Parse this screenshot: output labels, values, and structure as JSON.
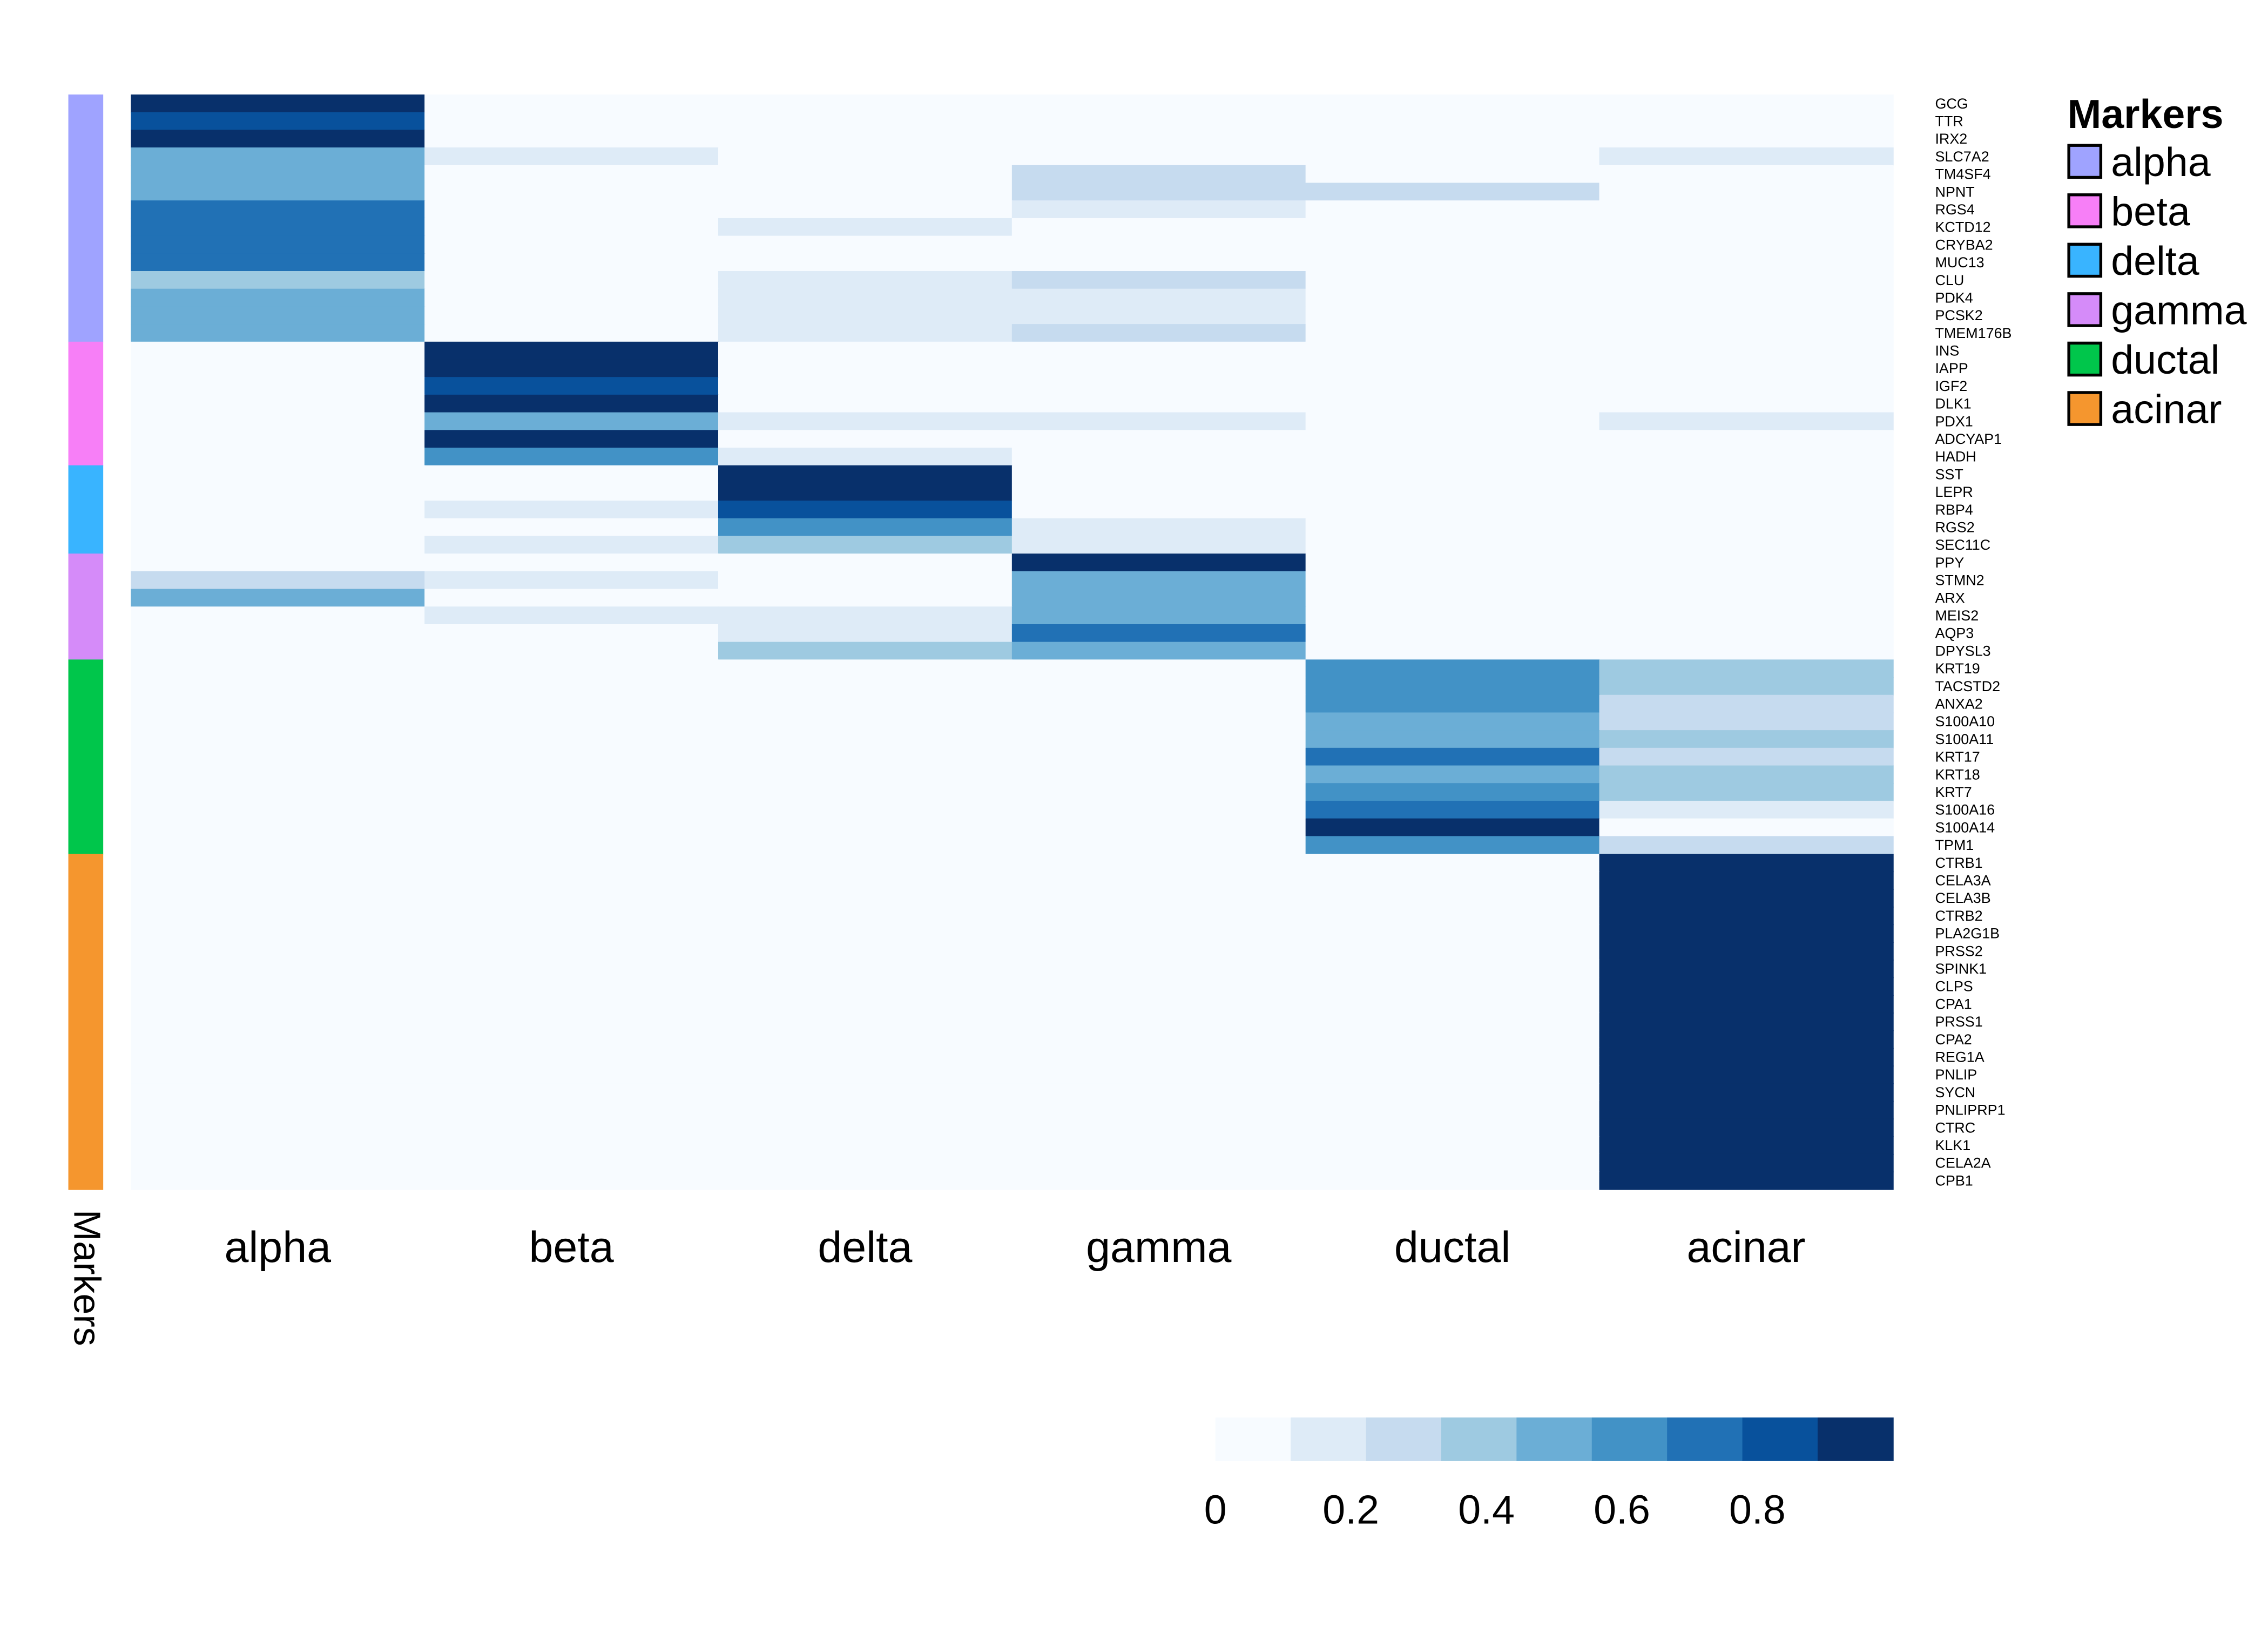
{
  "chart_data": {
    "type": "heatmap",
    "title": "",
    "columns": [
      "alpha",
      "beta",
      "delta",
      "gamma",
      "ductal",
      "acinar"
    ],
    "row_annotation_title": "Markers",
    "row_groups": [
      {
        "name": "alpha",
        "color": "#9fa3ff",
        "genes": [
          "GCG",
          "TTR",
          "IRX2",
          "SLC7A2",
          "TM4SF4",
          "NPNT",
          "RGS4",
          "KCTD12",
          "CRYBA2",
          "MUC13",
          "CLU",
          "PDK4",
          "PCSK2",
          "TMEM176B"
        ]
      },
      {
        "name": "beta",
        "color": "#f77ff7",
        "genes": [
          "INS",
          "IAPP",
          "IGF2",
          "DLK1",
          "PDX1",
          "ADCYAP1",
          "HADH"
        ]
      },
      {
        "name": "delta",
        "color": "#39b4ff",
        "genes": [
          "SST",
          "LEPR",
          "RBP4",
          "RGS2",
          "SEC11C"
        ]
      },
      {
        "name": "gamma",
        "color": "#d58bf9",
        "genes": [
          "PPY",
          "STMN2",
          "ARX",
          "MEIS2",
          "AQP3",
          "DPYSL3"
        ]
      },
      {
        "name": "ductal",
        "color": "#00c64b",
        "genes": [
          "KRT19",
          "TACSTD2",
          "ANXA2",
          "S100A10",
          "S100A11",
          "KRT17",
          "KRT18",
          "KRT7",
          "S100A16",
          "S100A14",
          "TPM1"
        ]
      },
      {
        "name": "acinar",
        "color": "#f5962e",
        "genes": [
          "CTRB1",
          "CELA3A",
          "CELA3B",
          "CTRB2",
          "PLA2G1B",
          "PRSS2",
          "SPINK1",
          "CLPS",
          "CPA1",
          "PRSS1",
          "CPA2",
          "REG1A",
          "PNLIP",
          "SYCN",
          "PNLIPRP1",
          "CTRC",
          "KLK1",
          "CELA2A",
          "CPB1"
        ]
      }
    ],
    "values": [
      [
        0.95,
        0.05,
        0.05,
        0.05,
        0.05,
        0.05
      ],
      [
        0.83,
        0.05,
        0.05,
        0.05,
        0.05,
        0.05
      ],
      [
        0.95,
        0.05,
        0.05,
        0.05,
        0.05,
        0.05
      ],
      [
        0.5,
        0.16,
        0.05,
        0.05,
        0.05,
        0.16
      ],
      [
        0.5,
        0.05,
        0.05,
        0.27,
        0.05,
        0.05
      ],
      [
        0.5,
        0.05,
        0.05,
        0.27,
        0.27,
        0.05
      ],
      [
        0.72,
        0.05,
        0.05,
        0.16,
        0.05,
        0.05
      ],
      [
        0.72,
        0.05,
        0.16,
        0.05,
        0.05,
        0.05
      ],
      [
        0.72,
        0.05,
        0.05,
        0.05,
        0.05,
        0.05
      ],
      [
        0.72,
        0.05,
        0.05,
        0.05,
        0.05,
        0.05
      ],
      [
        0.38,
        0.05,
        0.16,
        0.27,
        0.05,
        0.05
      ],
      [
        0.5,
        0.05,
        0.16,
        0.16,
        0.05,
        0.05
      ],
      [
        0.5,
        0.05,
        0.16,
        0.16,
        0.05,
        0.05
      ],
      [
        0.5,
        0.05,
        0.16,
        0.27,
        0.05,
        0.05
      ],
      [
        0.05,
        0.95,
        0.05,
        0.05,
        0.05,
        0.05
      ],
      [
        0.05,
        0.95,
        0.05,
        0.05,
        0.05,
        0.05
      ],
      [
        0.05,
        0.83,
        0.05,
        0.05,
        0.05,
        0.05
      ],
      [
        0.05,
        0.95,
        0.05,
        0.05,
        0.05,
        0.05
      ],
      [
        0.05,
        0.5,
        0.16,
        0.16,
        0.05,
        0.16
      ],
      [
        0.05,
        0.95,
        0.05,
        0.05,
        0.05,
        0.05
      ],
      [
        0.05,
        0.61,
        0.16,
        0.05,
        0.05,
        0.05
      ],
      [
        0.05,
        0.05,
        0.95,
        0.05,
        0.05,
        0.05
      ],
      [
        0.05,
        0.05,
        0.95,
        0.05,
        0.05,
        0.05
      ],
      [
        0.05,
        0.16,
        0.83,
        0.05,
        0.05,
        0.05
      ],
      [
        0.05,
        0.05,
        0.61,
        0.16,
        0.05,
        0.05
      ],
      [
        0.05,
        0.16,
        0.38,
        0.16,
        0.05,
        0.05
      ],
      [
        0.05,
        0.05,
        0.05,
        0.95,
        0.05,
        0.05
      ],
      [
        0.27,
        0.16,
        0.05,
        0.5,
        0.05,
        0.05
      ],
      [
        0.5,
        0.05,
        0.05,
        0.5,
        0.05,
        0.05
      ],
      [
        0.05,
        0.16,
        0.16,
        0.5,
        0.05,
        0.05
      ],
      [
        0.05,
        0.05,
        0.16,
        0.72,
        0.05,
        0.05
      ],
      [
        0.05,
        0.05,
        0.38,
        0.5,
        0.05,
        0.05
      ],
      [
        0.05,
        0.05,
        0.05,
        0.05,
        0.61,
        0.38
      ],
      [
        0.05,
        0.05,
        0.05,
        0.05,
        0.61,
        0.38
      ],
      [
        0.05,
        0.05,
        0.05,
        0.05,
        0.61,
        0.27
      ],
      [
        0.05,
        0.05,
        0.05,
        0.05,
        0.5,
        0.27
      ],
      [
        0.05,
        0.05,
        0.05,
        0.05,
        0.5,
        0.38
      ],
      [
        0.05,
        0.05,
        0.05,
        0.05,
        0.72,
        0.27
      ],
      [
        0.05,
        0.05,
        0.05,
        0.05,
        0.5,
        0.38
      ],
      [
        0.05,
        0.05,
        0.05,
        0.05,
        0.61,
        0.38
      ],
      [
        0.05,
        0.05,
        0.05,
        0.05,
        0.72,
        0.16
      ],
      [
        0.05,
        0.05,
        0.05,
        0.05,
        0.95,
        0.05
      ],
      [
        0.05,
        0.05,
        0.05,
        0.05,
        0.61,
        0.27
      ],
      [
        0.05,
        0.05,
        0.05,
        0.05,
        0.05,
        0.95
      ],
      [
        0.05,
        0.05,
        0.05,
        0.05,
        0.05,
        0.95
      ],
      [
        0.05,
        0.05,
        0.05,
        0.05,
        0.05,
        0.95
      ],
      [
        0.05,
        0.05,
        0.05,
        0.05,
        0.05,
        0.95
      ],
      [
        0.05,
        0.05,
        0.05,
        0.05,
        0.05,
        0.95
      ],
      [
        0.05,
        0.05,
        0.05,
        0.05,
        0.05,
        0.95
      ],
      [
        0.05,
        0.05,
        0.05,
        0.05,
        0.05,
        0.95
      ],
      [
        0.05,
        0.05,
        0.05,
        0.05,
        0.05,
        0.95
      ],
      [
        0.05,
        0.05,
        0.05,
        0.05,
        0.05,
        0.95
      ],
      [
        0.05,
        0.05,
        0.05,
        0.05,
        0.05,
        0.95
      ],
      [
        0.05,
        0.05,
        0.05,
        0.05,
        0.05,
        0.95
      ],
      [
        0.05,
        0.05,
        0.05,
        0.05,
        0.05,
        0.95
      ],
      [
        0.05,
        0.05,
        0.05,
        0.05,
        0.05,
        0.95
      ],
      [
        0.05,
        0.05,
        0.05,
        0.05,
        0.05,
        0.95
      ],
      [
        0.05,
        0.05,
        0.05,
        0.05,
        0.05,
        0.95
      ],
      [
        0.05,
        0.05,
        0.05,
        0.05,
        0.05,
        0.95
      ],
      [
        0.05,
        0.05,
        0.05,
        0.05,
        0.05,
        0.95
      ],
      [
        0.05,
        0.05,
        0.05,
        0.05,
        0.05,
        0.95
      ],
      [
        0.05,
        0.05,
        0.05,
        0.05,
        0.05,
        0.95
      ]
    ],
    "color_scale": {
      "range": [
        0,
        1
      ],
      "bins": [
        "#f7fbff",
        "#deebf7",
        "#c6dbef",
        "#9ecae1",
        "#6baed6",
        "#4292c6",
        "#2171b5",
        "#08519c",
        "#08306b"
      ],
      "tick_labels": [
        "0",
        "0.2",
        "0.4",
        "0.6",
        "0.8"
      ],
      "ticks": [
        0,
        0.2,
        0.4,
        0.6,
        0.8
      ],
      "placement": "bottom-right"
    },
    "legend": {
      "title": "Markers",
      "placement": "top-right"
    }
  }
}
